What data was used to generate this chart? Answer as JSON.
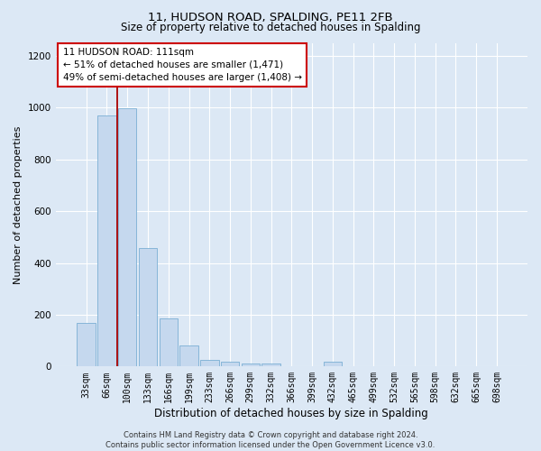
{
  "title1": "11, HUDSON ROAD, SPALDING, PE11 2FB",
  "title2": "Size of property relative to detached houses in Spalding",
  "xlabel": "Distribution of detached houses by size in Spalding",
  "ylabel": "Number of detached properties",
  "bar_color": "#c5d8ee",
  "bar_edge_color": "#7aafd4",
  "categories": [
    "33sqm",
    "66sqm",
    "100sqm",
    "133sqm",
    "166sqm",
    "199sqm",
    "233sqm",
    "266sqm",
    "299sqm",
    "332sqm",
    "366sqm",
    "399sqm",
    "432sqm",
    "465sqm",
    "499sqm",
    "532sqm",
    "565sqm",
    "598sqm",
    "632sqm",
    "665sqm",
    "698sqm"
  ],
  "values": [
    170,
    970,
    998,
    458,
    185,
    80,
    25,
    20,
    13,
    10,
    0,
    0,
    18,
    0,
    0,
    0,
    0,
    0,
    0,
    0,
    0
  ],
  "vline_x": 1.5,
  "annotation_text": "11 HUDSON ROAD: 111sqm\n← 51% of detached houses are smaller (1,471)\n49% of semi-detached houses are larger (1,408) →",
  "vline_color": "#aa0000",
  "annotation_box_color": "#ffffff",
  "annotation_box_edge": "#cc0000",
  "footer_text": "Contains HM Land Registry data © Crown copyright and database right 2024.\nContains public sector information licensed under the Open Government Licence v3.0.",
  "ylim": [
    0,
    1250
  ],
  "yticks": [
    0,
    200,
    400,
    600,
    800,
    1000,
    1200
  ],
  "bg_color": "#dce8f5",
  "grid_color": "#ffffff",
  "title1_fontsize": 9.5,
  "title2_fontsize": 8.5,
  "xlabel_fontsize": 8.5,
  "ylabel_fontsize": 8.0,
  "tick_fontsize": 7.0,
  "annotation_fontsize": 7.5,
  "footer_fontsize": 6.0
}
